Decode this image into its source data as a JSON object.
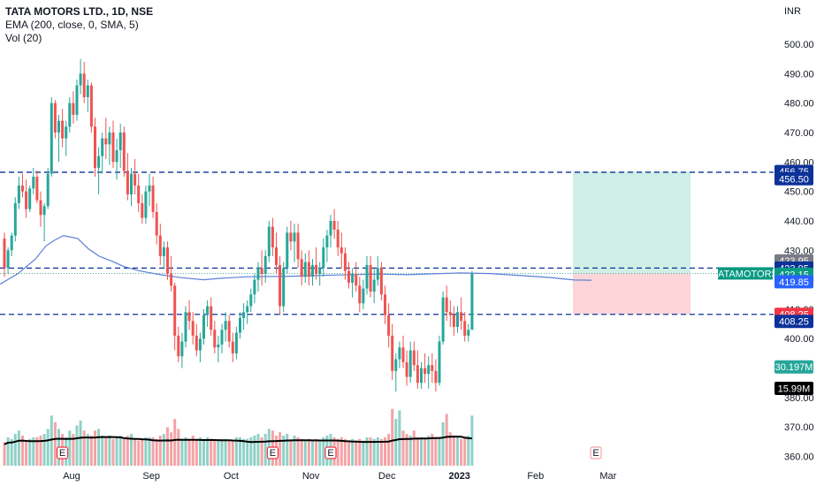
{
  "legend": {
    "title": "TATA MOTORS LTD., 1D, NSE",
    "ema": "EMA (200, close, 0, SMA, 5)",
    "vol": "Vol (20)"
  },
  "currency": "INR",
  "colors": {
    "up": "#26a69a",
    "down": "#ef5350",
    "up_vol": "#8fd1c7",
    "down_vol": "#f5a3a6",
    "ema": "#5b7fd6",
    "dashed": "#0c3299",
    "vol_ma": "#000000",
    "target_zone": "#cfeee6",
    "stop_zone": "#fbd5d8"
  },
  "chart_data": {
    "type": "candlestick",
    "title": "TATA MOTORS LTD., 1D, NSE",
    "ylabel": "INR",
    "ylim": [
      358,
      512
    ],
    "y_ticks": [
      360,
      370,
      380,
      390,
      400,
      410,
      420,
      430,
      440,
      450,
      460,
      470,
      480,
      490,
      500
    ],
    "y_tick_labels": [
      "360.00",
      "370.00",
      "380.00",
      "390.00",
      "400.00",
      "410.00",
      "420.00",
      "430.00",
      "440.00",
      "450.00",
      "460.00",
      "470.00",
      "480.00",
      "490.00",
      "500.00"
    ],
    "x_labels": [
      "Aug",
      "Sep",
      "Oct",
      "Nov",
      "Dec",
      "2023",
      "Feb",
      "Mar"
    ],
    "x_label_index": [
      10,
      32,
      54,
      76,
      97,
      117,
      138,
      158
    ],
    "bar_count": 165,
    "grid": false,
    "ohlc": [
      [
        434,
        436,
        421,
        424
      ],
      [
        424,
        431,
        422,
        430
      ],
      [
        430,
        436,
        428,
        435
      ],
      [
        435,
        448,
        433,
        446
      ],
      [
        446,
        455,
        444,
        452
      ],
      [
        452,
        456,
        448,
        450
      ],
      [
        450,
        454,
        441,
        444
      ],
      [
        444,
        452,
        443,
        451
      ],
      [
        451,
        458,
        449,
        455
      ],
      [
        455,
        457,
        446,
        447
      ],
      [
        447,
        450,
        438,
        442
      ],
      [
        442,
        446,
        433,
        445
      ],
      [
        445,
        458,
        444,
        456
      ],
      [
        456,
        482,
        455,
        480
      ],
      [
        480,
        481,
        468,
        470
      ],
      [
        470,
        476,
        460,
        474
      ],
      [
        474,
        478,
        465,
        468
      ],
      [
        468,
        474,
        462,
        472
      ],
      [
        472,
        482,
        470,
        480
      ],
      [
        480,
        484,
        473,
        476
      ],
      [
        476,
        488,
        474,
        486
      ],
      [
        486,
        495,
        483,
        490
      ],
      [
        490,
        494,
        480,
        482
      ],
      [
        482,
        488,
        477,
        486
      ],
      [
        486,
        487,
        470,
        472
      ],
      [
        472,
        475,
        455,
        458
      ],
      [
        458,
        465,
        449,
        462
      ],
      [
        462,
        470,
        456,
        468
      ],
      [
        468,
        475,
        461,
        466
      ],
      [
        466,
        472,
        459,
        470
      ],
      [
        470,
        474,
        458,
        460
      ],
      [
        460,
        468,
        454,
        464
      ],
      [
        464,
        473,
        458,
        470
      ],
      [
        470,
        472,
        455,
        457
      ],
      [
        457,
        463,
        447,
        449
      ],
      [
        449,
        458,
        445,
        456
      ],
      [
        456,
        461,
        449,
        452
      ],
      [
        452,
        456,
        443,
        446
      ],
      [
        446,
        449,
        439,
        441
      ],
      [
        441,
        452,
        439,
        450
      ],
      [
        450,
        456,
        445,
        452
      ],
      [
        452,
        455,
        441,
        443
      ],
      [
        443,
        446,
        432,
        435
      ],
      [
        435,
        439,
        425,
        428
      ],
      [
        428,
        433,
        424,
        431
      ],
      [
        431,
        433,
        420,
        422
      ],
      [
        422,
        428,
        416,
        418
      ],
      [
        418,
        419,
        396,
        401
      ],
      [
        401,
        404,
        392,
        394
      ],
      [
        394,
        402,
        390,
        399
      ],
      [
        399,
        411,
        397,
        409
      ],
      [
        409,
        413,
        403,
        406
      ],
      [
        406,
        409,
        398,
        401
      ],
      [
        401,
        405,
        394,
        396
      ],
      [
        396,
        402,
        392,
        400
      ],
      [
        400,
        410,
        398,
        408
      ],
      [
        408,
        413,
        404,
        411
      ],
      [
        411,
        414,
        401,
        403
      ],
      [
        403,
        406,
        395,
        397
      ],
      [
        397,
        401,
        392,
        398
      ],
      [
        398,
        405,
        395,
        403
      ],
      [
        403,
        409,
        399,
        406
      ],
      [
        406,
        408,
        397,
        399
      ],
      [
        399,
        402,
        392,
        395
      ],
      [
        395,
        404,
        393,
        402
      ],
      [
        402,
        409,
        400,
        407
      ],
      [
        407,
        412,
        403,
        409
      ],
      [
        409,
        413,
        405,
        411
      ],
      [
        411,
        417,
        409,
        415
      ],
      [
        415,
        422,
        412,
        420
      ],
      [
        420,
        426,
        416,
        424
      ],
      [
        424,
        430,
        418,
        422
      ],
      [
        422,
        430,
        419,
        428
      ],
      [
        428,
        440,
        426,
        438
      ],
      [
        438,
        441,
        428,
        431
      ],
      [
        431,
        436,
        422,
        425
      ],
      [
        425,
        428,
        408,
        411
      ],
      [
        411,
        426,
        409,
        424
      ],
      [
        424,
        438,
        422,
        436
      ],
      [
        436,
        440,
        430,
        433
      ],
      [
        433,
        439,
        426,
        436
      ],
      [
        436,
        439,
        424,
        427
      ],
      [
        427,
        430,
        418,
        421
      ],
      [
        421,
        429,
        419,
        426
      ],
      [
        426,
        430,
        418,
        421
      ],
      [
        421,
        427,
        418,
        425
      ],
      [
        425,
        431,
        420,
        422
      ],
      [
        422,
        426,
        418,
        424
      ],
      [
        424,
        434,
        421,
        431
      ],
      [
        431,
        437,
        426,
        435
      ],
      [
        435,
        442,
        431,
        440
      ],
      [
        440,
        444,
        434,
        437
      ],
      [
        437,
        440,
        428,
        431
      ],
      [
        431,
        436,
        424,
        429
      ],
      [
        429,
        431,
        420,
        423
      ],
      [
        423,
        426,
        417,
        419
      ],
      [
        419,
        424,
        414,
        422
      ],
      [
        422,
        426,
        416,
        418
      ],
      [
        418,
        421,
        409,
        412
      ],
      [
        412,
        420,
        410,
        417
      ],
      [
        417,
        428,
        415,
        425
      ],
      [
        425,
        428,
        414,
        416
      ],
      [
        416,
        424,
        412,
        420
      ],
      [
        420,
        428,
        418,
        424
      ],
      [
        424,
        426,
        413,
        415
      ],
      [
        415,
        418,
        405,
        408
      ],
      [
        408,
        412,
        397,
        401
      ],
      [
        401,
        405,
        386,
        389
      ],
      [
        389,
        395,
        382,
        393
      ],
      [
        393,
        399,
        390,
        397
      ],
      [
        397,
        401,
        390,
        392
      ],
      [
        392,
        396,
        384,
        387
      ],
      [
        387,
        399,
        385,
        396
      ],
      [
        396,
        399,
        389,
        391
      ],
      [
        391,
        396,
        383,
        385
      ],
      [
        385,
        392,
        383,
        390
      ],
      [
        390,
        395,
        385,
        388
      ],
      [
        388,
        394,
        383,
        391
      ],
      [
        391,
        395,
        385,
        389
      ],
      [
        389,
        393,
        382,
        385
      ],
      [
        385,
        401,
        384,
        399
      ],
      [
        399,
        416,
        398,
        414
      ],
      [
        414,
        418,
        406,
        409
      ],
      [
        409,
        413,
        404,
        408
      ],
      [
        408,
        411,
        401,
        404
      ],
      [
        404,
        411,
        402,
        409
      ],
      [
        409,
        414,
        403,
        406
      ],
      [
        406,
        409,
        399,
        401
      ],
      [
        401,
        405,
        399,
        403
      ],
      [
        403,
        423,
        403,
        422
      ]
    ],
    "x_offset": 35,
    "volume_axis_note": "volume in millions",
    "volume": [
      14,
      17,
      16,
      19,
      21,
      18,
      15,
      16,
      17,
      17,
      18,
      19,
      22,
      30,
      26,
      22,
      19,
      17,
      21,
      19,
      24,
      27,
      21,
      19,
      18,
      21,
      22,
      18,
      17,
      18,
      16,
      17,
      18,
      16,
      18,
      19,
      16,
      15,
      16,
      17,
      17,
      17,
      16,
      18,
      19,
      23,
      20,
      28,
      22,
      16,
      17,
      16,
      18,
      15,
      17,
      16,
      17,
      16,
      15,
      15,
      16,
      16,
      15,
      15,
      17,
      17,
      16,
      16,
      17,
      18,
      19,
      17,
      19,
      22,
      21,
      18,
      20,
      18,
      19,
      16,
      18,
      17,
      16,
      15,
      16,
      15,
      16,
      15,
      17,
      18,
      19,
      17,
      16,
      17,
      16,
      15,
      16,
      15,
      16,
      15,
      17,
      17,
      16,
      17,
      16,
      17,
      19,
      34,
      28,
      33,
      21,
      19,
      18,
      21,
      17,
      17,
      16,
      18,
      19,
      17,
      16,
      26,
      31,
      20,
      18,
      17,
      16,
      17,
      18,
      30
    ],
    "volume_ma_note": "Vol (20) moving average",
    "ema200": [
      [
        0,
        418.5
      ],
      [
        20,
        422.0
      ],
      [
        40,
        427.0
      ],
      [
        52,
        431.5
      ],
      [
        62,
        433.5
      ],
      [
        72,
        435.0
      ],
      [
        88,
        434.0
      ],
      [
        100,
        430.5
      ],
      [
        112,
        428.0
      ],
      [
        125,
        426.5
      ],
      [
        140,
        424.5
      ],
      [
        158,
        423.0
      ],
      [
        180,
        421.8
      ],
      [
        205,
        420.7
      ],
      [
        230,
        420.0
      ],
      [
        250,
        420.5
      ],
      [
        280,
        421.0
      ],
      [
        330,
        421.2
      ],
      [
        380,
        421.6
      ],
      [
        430,
        421.9
      ],
      [
        460,
        421.7
      ],
      [
        490,
        422.0
      ],
      [
        520,
        422.3
      ],
      [
        555,
        422.1
      ],
      [
        590,
        421.4
      ],
      [
        620,
        420.8
      ],
      [
        650,
        419.9
      ],
      [
        669,
        419.85
      ]
    ],
    "horizontal_lines": [
      456.5,
      423.95,
      408.25
    ],
    "position": {
      "entry": 422.15,
      "target": 456.75,
      "stop": 408.25
    }
  },
  "price_tags": [
    {
      "label": "456.75",
      "value": 456.75,
      "color": "#0c3299"
    },
    {
      "label": "456.50",
      "value": 454.3,
      "color": "#0c3299"
    },
    {
      "label": "423.95",
      "value": 426.4,
      "color": "#787b86"
    },
    {
      "label": "423.95",
      "value": 423.95,
      "color": "#0c3299"
    },
    {
      "label": "422.15",
      "value": 421.85,
      "color": "#089981"
    },
    {
      "label": "419.85",
      "value": 419.3,
      "color": "#2962ff"
    },
    {
      "label": "408.25",
      "value": 408.25,
      "color": "#f23645"
    },
    {
      "label": "408.25",
      "value": 405.85,
      "color": "#0c3299"
    },
    {
      "label": "30.197M",
      "value": 390.4,
      "color": "#26a69a"
    },
    {
      "label": "15.99M",
      "value": 383.1,
      "color": "#000000"
    }
  ],
  "symbol_tag": "TATAMOTORS",
  "earnings_markers": [
    {
      "label": "E",
      "index": 16
    },
    {
      "label": "E",
      "index": 74
    },
    {
      "label": "E",
      "index": 90
    }
  ],
  "future_earnings_marker": {
    "label": "E"
  }
}
